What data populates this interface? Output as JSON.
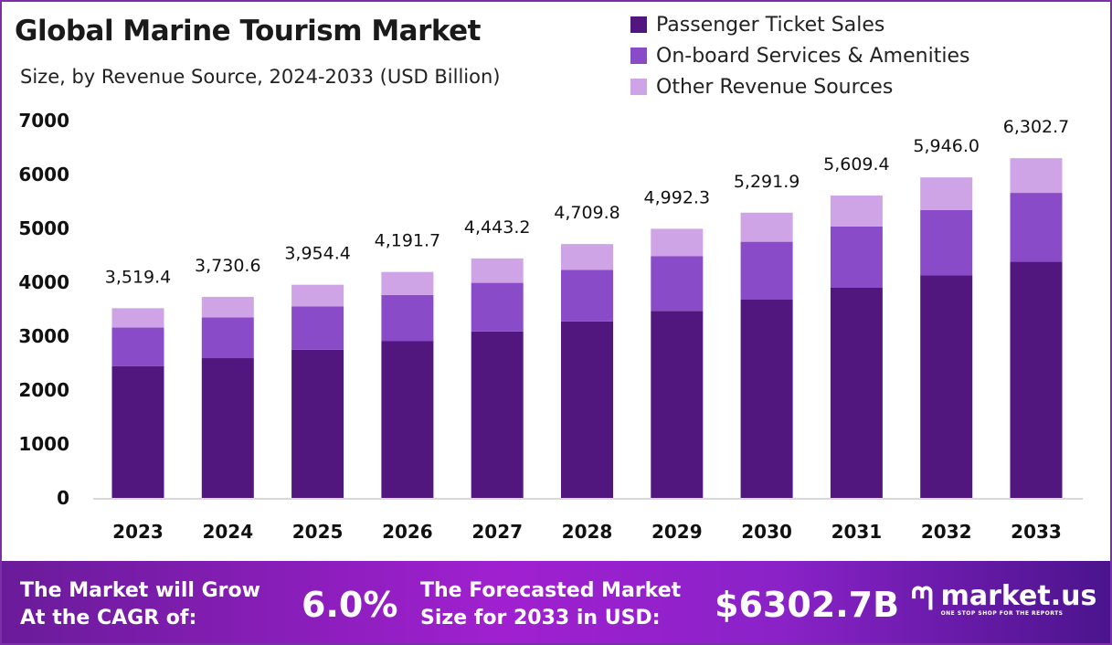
{
  "chart_data": {
    "type": "bar",
    "stacked": true,
    "title": "Global Marine Tourism Market",
    "subtitle": "Size, by Revenue Source, 2024-2033 (USD Billion)",
    "categories": [
      "2023",
      "2024",
      "2025",
      "2026",
      "2027",
      "2028",
      "2029",
      "2030",
      "2031",
      "2032",
      "2033"
    ],
    "series": [
      {
        "name": "Passenger Ticket Sales",
        "color": "#52167f",
        "values": [
          2446.0,
          2592.8,
          2748.3,
          2913.2,
          3088.0,
          3273.3,
          3469.6,
          3677.9,
          3898.5,
          4132.5,
          4380.4
        ]
      },
      {
        "name": "On-board Services & Amenities",
        "color": "#8a4bc9",
        "values": [
          714.4,
          757.3,
          802.7,
          850.9,
          902.0,
          956.1,
          1013.4,
          1074.3,
          1138.7,
          1207.0,
          1279.4
        ]
      },
      {
        "name": "Other Revenue Sources",
        "color": "#cfa4e6",
        "values": [
          359.0,
          380.5,
          403.4,
          427.6,
          453.2,
          480.4,
          509.3,
          539.7,
          572.2,
          606.5,
          642.9
        ]
      }
    ],
    "totals": [
      "3,519.4",
      "3,730.6",
      "3,954.4",
      "4,191.7",
      "4,443.2",
      "4,709.8",
      "4,992.3",
      "5,291.9",
      "5,609.4",
      "5,946.0",
      "6,302.7"
    ],
    "total_values": [
      3519.4,
      3730.6,
      3954.4,
      4191.7,
      4443.2,
      4709.8,
      4992.3,
      5291.9,
      5609.4,
      5946.0,
      6302.7
    ],
    "ylim": [
      0,
      7000
    ],
    "yticks": [
      "0",
      "1000",
      "2000",
      "3000",
      "4000",
      "5000",
      "6000",
      "7000"
    ],
    "grid": false,
    "legend": "top-right",
    "xlabel": "",
    "ylabel": ""
  },
  "footer": {
    "cagr_text_1": "The Market will Grow",
    "cagr_text_2": "At the CAGR of:",
    "cagr_value": "6.0%",
    "forecast_text_1": "The Forecasted Market",
    "forecast_text_2": "Size for 2033 in USD:",
    "forecast_value": "$6302.7B",
    "logo_name": "market.us",
    "logo_tagline": "ONE STOP SHOP FOR THE REPORTS"
  }
}
